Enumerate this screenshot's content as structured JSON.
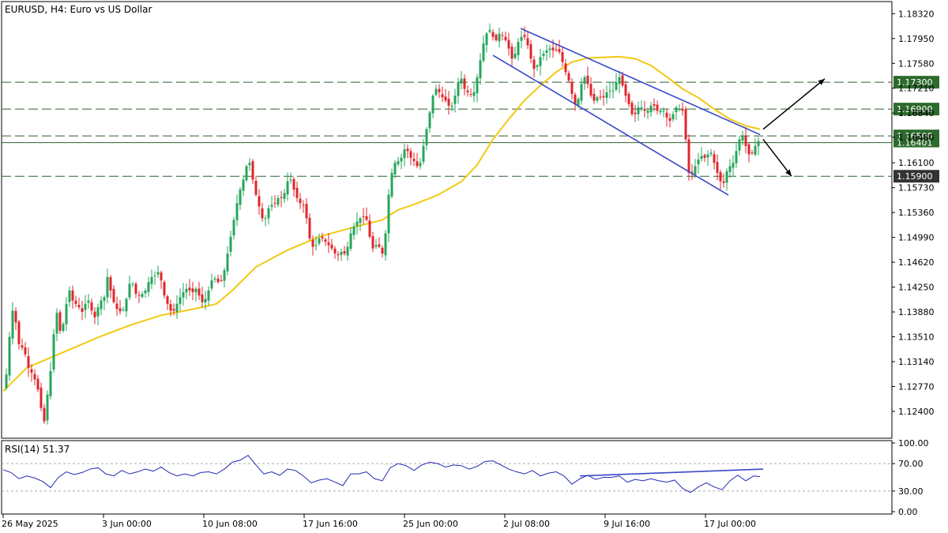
{
  "header": {
    "title": "EURUSD, H4:  Euro vs US Dollar"
  },
  "rsi_panel": {
    "label": "RSI(14) 51.37",
    "levels": [
      "100.00",
      "70.00",
      "30.00",
      "0.00"
    ]
  },
  "colors": {
    "bull": "#26a65b",
    "bear": "#e0262b",
    "ma": "#f2c811",
    "channel": "#3a48c9",
    "rsi_line": "#1f2ab5",
    "level_line": "#2f5f2f",
    "label_box_green": "#2d6a2d",
    "label_box_dark": "#333333"
  },
  "chart_data": {
    "type": "candlestick",
    "symbol": "EURUSD",
    "timeframe": "H4",
    "ylim": [
      1.12,
      1.185
    ],
    "y_ticks": [
      "1.18320",
      "1.17950",
      "1.17580",
      "1.17210",
      "1.16840",
      "1.16480",
      "1.16100",
      "1.15730",
      "1.15360",
      "1.14990",
      "1.14620",
      "1.14250",
      "1.13880",
      "1.13510",
      "1.13140",
      "1.12770",
      "1.12400"
    ],
    "x_ticks": [
      "26 May 2025",
      "3 Jun 00:00",
      "10 Jun 08:00",
      "17 Jun 16:00",
      "25 Jun 00:00",
      "2 Jul 08:00",
      "9 Jul 16:00",
      "17 Jul 00:00"
    ],
    "price_path": [
      [
        0,
        1.1275
      ],
      [
        5,
        1.13
      ],
      [
        10,
        1.1385
      ],
      [
        14,
        1.1395
      ],
      [
        18,
        1.135
      ],
      [
        22,
        1.133
      ],
      [
        26,
        1.134
      ],
      [
        30,
        1.131
      ],
      [
        34,
        1.13
      ],
      [
        38,
        1.1295
      ],
      [
        42,
        1.128
      ],
      [
        46,
        1.1265
      ],
      [
        48,
        1.1245
      ],
      [
        52,
        1.1225
      ],
      [
        54,
        1.1215
      ],
      [
        56,
        1.1265
      ],
      [
        60,
        1.13
      ],
      [
        64,
        1.1355
      ],
      [
        67,
        1.139
      ],
      [
        70,
        1.138
      ],
      [
        72,
        1.136
      ],
      [
        76,
        1.137
      ],
      [
        80,
        1.14
      ],
      [
        84,
        1.142
      ],
      [
        88,
        1.1405
      ],
      [
        92,
        1.14
      ],
      [
        96,
        1.1395
      ],
      [
        100,
        1.1388
      ],
      [
        104,
        1.14
      ],
      [
        108,
        1.1405
      ],
      [
        112,
        1.139
      ],
      [
        116,
        1.138
      ],
      [
        120,
        1.1395
      ],
      [
        124,
        1.1405
      ],
      [
        128,
        1.141
      ],
      [
        131,
        1.1445
      ],
      [
        134,
        1.143
      ],
      [
        138,
        1.141
      ],
      [
        142,
        1.1395
      ],
      [
        146,
        1.139
      ],
      [
        150,
        1.1388
      ],
      [
        154,
        1.1395
      ],
      [
        158,
        1.142
      ],
      [
        162,
        1.144
      ],
      [
        166,
        1.142
      ],
      [
        170,
        1.141
      ],
      [
        174,
        1.1415
      ],
      [
        178,
        1.1415
      ],
      [
        182,
        1.1425
      ],
      [
        186,
        1.144
      ],
      [
        190,
        1.144
      ],
      [
        194,
        1.1445
      ],
      [
        198,
        1.145
      ],
      [
        202,
        1.142
      ],
      [
        206,
        1.1405
      ],
      [
        210,
        1.1395
      ],
      [
        214,
        1.1385
      ],
      [
        218,
        1.1395
      ],
      [
        222,
        1.1405
      ],
      [
        226,
        1.1415
      ],
      [
        230,
        1.142
      ],
      [
        234,
        1.1425
      ],
      [
        238,
        1.1415
      ],
      [
        242,
        1.142
      ],
      [
        246,
        1.1425
      ],
      [
        250,
        1.14
      ],
      [
        254,
        1.1405
      ],
      [
        258,
        1.141
      ],
      [
        262,
        1.143
      ],
      [
        266,
        1.144
      ],
      [
        270,
        1.1435
      ],
      [
        274,
        1.143
      ],
      [
        278,
        1.144
      ],
      [
        282,
        1.146
      ],
      [
        286,
        1.149
      ],
      [
        290,
        1.151
      ],
      [
        294,
        1.154
      ],
      [
        298,
        1.156
      ],
      [
        302,
        1.158
      ],
      [
        306,
        1.159
      ],
      [
        310,
        1.162
      ],
      [
        314,
        1.16
      ],
      [
        318,
        1.157
      ],
      [
        322,
        1.1555
      ],
      [
        326,
        1.1535
      ],
      [
        330,
        1.152
      ],
      [
        334,
        1.1535
      ],
      [
        338,
        1.155
      ],
      [
        342,
        1.1545
      ],
      [
        346,
        1.1555
      ],
      [
        350,
        1.156
      ],
      [
        354,
        1.1555
      ],
      [
        358,
        1.1575
      ],
      [
        362,
        1.159
      ],
      [
        366,
        1.158
      ],
      [
        370,
        1.156
      ],
      [
        374,
        1.1555
      ],
      [
        378,
        1.1545
      ],
      [
        382,
        1.155
      ],
      [
        386,
        1.1505
      ],
      [
        390,
        1.149
      ],
      [
        394,
        1.148
      ],
      [
        398,
        1.1495
      ],
      [
        402,
        1.15
      ],
      [
        406,
        1.1495
      ],
      [
        410,
        1.149
      ],
      [
        414,
        1.1485
      ],
      [
        418,
        1.148
      ],
      [
        422,
        1.147
      ],
      [
        426,
        1.1475
      ],
      [
        430,
        1.148
      ],
      [
        434,
        1.147
      ],
      [
        438,
        1.15
      ],
      [
        442,
        1.151
      ],
      [
        446,
        1.152
      ],
      [
        450,
        1.1525
      ],
      [
        454,
        1.153
      ],
      [
        458,
        1.153
      ],
      [
        462,
        1.152
      ],
      [
        466,
        1.148
      ],
      [
        470,
        1.1485
      ],
      [
        474,
        1.149
      ],
      [
        478,
        1.148
      ],
      [
        482,
        1.147
      ],
      [
        486,
        1.154
      ],
      [
        490,
        1.1585
      ],
      [
        494,
        1.1605
      ],
      [
        498,
        1.1615
      ],
      [
        502,
        1.161
      ],
      [
        506,
        1.1625
      ],
      [
        510,
        1.1635
      ],
      [
        514,
        1.162
      ],
      [
        518,
        1.1615
      ],
      [
        522,
        1.161
      ],
      [
        526,
        1.16
      ],
      [
        530,
        1.162
      ],
      [
        534,
        1.165
      ],
      [
        538,
        1.167
      ],
      [
        542,
        1.17
      ],
      [
        546,
        1.172
      ],
      [
        550,
        1.172
      ],
      [
        554,
        1.171
      ],
      [
        558,
        1.1705
      ],
      [
        562,
        1.17
      ],
      [
        566,
        1.169
      ],
      [
        570,
        1.17
      ],
      [
        574,
        1.172
      ],
      [
        578,
        1.174
      ],
      [
        582,
        1.173
      ],
      [
        586,
        1.171
      ],
      [
        590,
        1.172
      ],
      [
        594,
        1.1705
      ],
      [
        598,
        1.1725
      ],
      [
        602,
        1.175
      ],
      [
        606,
        1.1775
      ],
      [
        610,
        1.18
      ],
      [
        614,
        1.1805
      ],
      [
        618,
        1.181
      ],
      [
        622,
        1.1785
      ],
      [
        626,
        1.18
      ],
      [
        630,
        1.1805
      ],
      [
        634,
        1.1795
      ],
      [
        638,
        1.179
      ],
      [
        642,
        1.177
      ],
      [
        646,
        1.176
      ],
      [
        650,
        1.1785
      ],
      [
        654,
        1.1795
      ],
      [
        658,
        1.18
      ],
      [
        662,
        1.1795
      ],
      [
        666,
        1.1775
      ],
      [
        670,
        1.1755
      ],
      [
        674,
        1.1745
      ],
      [
        678,
        1.1765
      ],
      [
        682,
        1.177
      ],
      [
        686,
        1.1775
      ],
      [
        690,
        1.178
      ],
      [
        694,
        1.178
      ],
      [
        698,
        1.1775
      ],
      [
        702,
        1.178
      ],
      [
        706,
        1.177
      ],
      [
        710,
        1.175
      ],
      [
        714,
        1.174
      ],
      [
        718,
        1.1725
      ],
      [
        722,
        1.17
      ],
      [
        726,
        1.1695
      ],
      [
        730,
        1.1715
      ],
      [
        734,
        1.174
      ],
      [
        738,
        1.1735
      ],
      [
        742,
        1.172
      ],
      [
        746,
        1.17
      ],
      [
        750,
        1.1705
      ],
      [
        754,
        1.171
      ],
      [
        758,
        1.1705
      ],
      [
        762,
        1.171
      ],
      [
        766,
        1.172
      ],
      [
        770,
        1.1715
      ],
      [
        774,
        1.172
      ],
      [
        778,
        1.174
      ],
      [
        782,
        1.1735
      ],
      [
        786,
        1.1715
      ],
      [
        790,
        1.1705
      ],
      [
        794,
        1.169
      ],
      [
        798,
        1.1675
      ],
      [
        802,
        1.169
      ],
      [
        806,
        1.1695
      ],
      [
        810,
        1.169
      ],
      [
        814,
        1.1685
      ],
      [
        818,
        1.169
      ],
      [
        822,
        1.17
      ],
      [
        826,
        1.169
      ],
      [
        830,
        1.1685
      ],
      [
        834,
        1.169
      ],
      [
        838,
        1.1685
      ],
      [
        842,
        1.167
      ],
      [
        846,
        1.1675
      ],
      [
        850,
        1.169
      ],
      [
        854,
        1.1695
      ],
      [
        858,
        1.1685
      ],
      [
        862,
        1.169
      ],
      [
        866,
        1.16
      ],
      [
        870,
        1.159
      ],
      [
        874,
        1.16
      ],
      [
        878,
        1.161
      ],
      [
        882,
        1.162
      ],
      [
        886,
        1.162
      ],
      [
        890,
        1.1615
      ],
      [
        894,
        1.163
      ],
      [
        898,
        1.162
      ],
      [
        902,
        1.16
      ],
      [
        906,
        1.159
      ],
      [
        910,
        1.1575
      ],
      [
        914,
        1.1585
      ],
      [
        918,
        1.161
      ],
      [
        922,
        1.16
      ],
      [
        926,
        1.162
      ],
      [
        930,
        1.1635
      ],
      [
        934,
        1.1655
      ],
      [
        938,
        1.1645
      ],
      [
        942,
        1.1625
      ],
      [
        946,
        1.162
      ],
      [
        950,
        1.163
      ],
      [
        954,
        1.164
      ],
      [
        958,
        1.1645
      ]
    ],
    "moving_average_path": [
      [
        0,
        1.127
      ],
      [
        30,
        1.1305
      ],
      [
        60,
        1.132
      ],
      [
        90,
        1.1335
      ],
      [
        120,
        1.135
      ],
      [
        160,
        1.1368
      ],
      [
        200,
        1.1383
      ],
      [
        240,
        1.1392
      ],
      [
        270,
        1.14
      ],
      [
        290,
        1.142
      ],
      [
        320,
        1.1455
      ],
      [
        360,
        1.148
      ],
      [
        400,
        1.15
      ],
      [
        440,
        1.1513
      ],
      [
        480,
        1.1525
      ],
      [
        500,
        1.154
      ],
      [
        520,
        1.1548
      ],
      [
        550,
        1.1562
      ],
      [
        580,
        1.1582
      ],
      [
        600,
        1.1607
      ],
      [
        620,
        1.1645
      ],
      [
        640,
        1.1675
      ],
      [
        660,
        1.1703
      ],
      [
        680,
        1.1725
      ],
      [
        700,
        1.1745
      ],
      [
        720,
        1.176
      ],
      [
        740,
        1.1766
      ],
      [
        760,
        1.1767
      ],
      [
        780,
        1.1768
      ],
      [
        800,
        1.1765
      ],
      [
        820,
        1.1755
      ],
      [
        840,
        1.1738
      ],
      [
        860,
        1.172
      ],
      [
        880,
        1.1707
      ],
      [
        900,
        1.169
      ],
      [
        920,
        1.1675
      ],
      [
        940,
        1.1665
      ],
      [
        958,
        1.166
      ]
    ],
    "channel_upper": [
      [
        655,
        1.181
      ],
      [
        958,
        1.1652
      ]
    ],
    "channel_lower": [
      [
        620,
        1.177
      ],
      [
        918,
        1.1562
      ]
    ],
    "horizontal_levels": [
      {
        "price": 1.173,
        "label": "1.17300"
      },
      {
        "price": 1.169,
        "label": "1.16900"
      },
      {
        "price": 1.165,
        "label": "1.16500"
      },
      {
        "price": 1.159,
        "label": "1.15900"
      }
    ],
    "current_price": {
      "price": 1.16401,
      "label": "1.16401"
    },
    "arrows": [
      "up",
      "down"
    ],
    "rsi_ylim": [
      0,
      100
    ],
    "rsi_path": [
      [
        0,
        61
      ],
      [
        10,
        57
      ],
      [
        20,
        48
      ],
      [
        30,
        52
      ],
      [
        40,
        49
      ],
      [
        50,
        44
      ],
      [
        60,
        35
      ],
      [
        70,
        50
      ],
      [
        80,
        58
      ],
      [
        90,
        54
      ],
      [
        100,
        57
      ],
      [
        110,
        62
      ],
      [
        120,
        64
      ],
      [
        130,
        55
      ],
      [
        140,
        52
      ],
      [
        150,
        60
      ],
      [
        160,
        55
      ],
      [
        170,
        58
      ],
      [
        180,
        62
      ],
      [
        190,
        59
      ],
      [
        200,
        65
      ],
      [
        210,
        57
      ],
      [
        220,
        52
      ],
      [
        230,
        55
      ],
      [
        240,
        52
      ],
      [
        250,
        57
      ],
      [
        260,
        58
      ],
      [
        270,
        55
      ],
      [
        280,
        62
      ],
      [
        290,
        72
      ],
      [
        300,
        75
      ],
      [
        310,
        82
      ],
      [
        320,
        68
      ],
      [
        330,
        55
      ],
      [
        340,
        58
      ],
      [
        350,
        53
      ],
      [
        360,
        62
      ],
      [
        370,
        60
      ],
      [
        380,
        52
      ],
      [
        390,
        42
      ],
      [
        400,
        46
      ],
      [
        410,
        48
      ],
      [
        420,
        43
      ],
      [
        430,
        38
      ],
      [
        440,
        55
      ],
      [
        450,
        55
      ],
      [
        460,
        58
      ],
      [
        470,
        48
      ],
      [
        480,
        45
      ],
      [
        490,
        64
      ],
      [
        500,
        70
      ],
      [
        510,
        67
      ],
      [
        520,
        60
      ],
      [
        530,
        68
      ],
      [
        540,
        72
      ],
      [
        550,
        70
      ],
      [
        560,
        65
      ],
      [
        570,
        68
      ],
      [
        580,
        67
      ],
      [
        590,
        62
      ],
      [
        600,
        66
      ],
      [
        610,
        73
      ],
      [
        620,
        74
      ],
      [
        630,
        68
      ],
      [
        640,
        62
      ],
      [
        650,
        58
      ],
      [
        660,
        55
      ],
      [
        670,
        60
      ],
      [
        680,
        52
      ],
      [
        690,
        56
      ],
      [
        700,
        58
      ],
      [
        710,
        52
      ],
      [
        720,
        40
      ],
      [
        730,
        48
      ],
      [
        740,
        53
      ],
      [
        750,
        47
      ],
      [
        760,
        50
      ],
      [
        770,
        50
      ],
      [
        780,
        52
      ],
      [
        790,
        43
      ],
      [
        800,
        47
      ],
      [
        810,
        45
      ],
      [
        820,
        48
      ],
      [
        830,
        45
      ],
      [
        840,
        43
      ],
      [
        850,
        46
      ],
      [
        860,
        34
      ],
      [
        870,
        28
      ],
      [
        880,
        36
      ],
      [
        890,
        42
      ],
      [
        900,
        36
      ],
      [
        910,
        32
      ],
      [
        920,
        45
      ],
      [
        930,
        53
      ],
      [
        940,
        45
      ],
      [
        950,
        52
      ],
      [
        958,
        51
      ]
    ],
    "rsi_trendline": [
      [
        730,
        52
      ],
      [
        962,
        62
      ]
    ]
  }
}
